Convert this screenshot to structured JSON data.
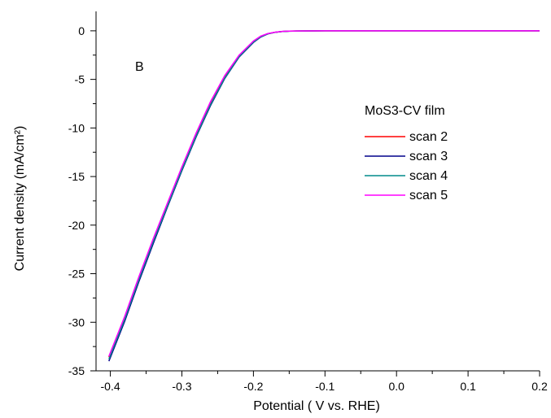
{
  "chart_data": {
    "type": "line",
    "panel_label": "B",
    "xlabel": "Potential ( V vs. RHE)",
    "ylabel": "Current density (mA/cm²)",
    "xlim": [
      -0.42,
      0.2
    ],
    "ylim": [
      -35,
      2
    ],
    "x_ticks": [
      -0.4,
      -0.3,
      -0.2,
      -0.1,
      0.0,
      0.1,
      0.2
    ],
    "x_tick_labels": [
      "-0.4",
      "-0.3",
      "-0.2",
      "-0.1",
      "0.0",
      "0.1",
      "0.2"
    ],
    "y_ticks": [
      0,
      -5,
      -10,
      -15,
      -20,
      -25,
      -30,
      -35
    ],
    "y_tick_labels": [
      "0",
      "-5",
      "-10",
      "-15",
      "-20",
      "-25",
      "-30",
      "-35"
    ],
    "legend_title": "MoS3-CV film",
    "legend_position": "right",
    "grid": false,
    "series": [
      {
        "name": "scan 2",
        "color": "#ff0000",
        "x": [
          -0.402,
          -0.38,
          -0.36,
          -0.34,
          -0.32,
          -0.3,
          -0.28,
          -0.26,
          -0.24,
          -0.22,
          -0.2,
          -0.19,
          -0.18,
          -0.17,
          -0.16,
          -0.15,
          -0.14,
          -0.12,
          -0.1,
          -0.05,
          0.0,
          0.05,
          0.1,
          0.15,
          0.2
        ],
        "y": [
          -33.6,
          -29.5,
          -25.5,
          -21.6,
          -17.9,
          -14.2,
          -10.7,
          -7.5,
          -4.8,
          -2.6,
          -1.1,
          -0.6,
          -0.3,
          -0.15,
          -0.07,
          -0.03,
          -0.02,
          -0.01,
          0,
          0,
          0,
          0,
          0,
          0,
          0
        ]
      },
      {
        "name": "scan 3",
        "color": "#00008b",
        "x": [
          -0.402,
          -0.38,
          -0.36,
          -0.34,
          -0.32,
          -0.3,
          -0.28,
          -0.26,
          -0.24,
          -0.22,
          -0.2,
          -0.19,
          -0.18,
          -0.17,
          -0.16,
          -0.15,
          -0.14,
          -0.12,
          -0.1,
          -0.05,
          0.0,
          0.05,
          0.1,
          0.15,
          0.2
        ],
        "y": [
          -34.0,
          -29.9,
          -25.8,
          -21.9,
          -18.1,
          -14.4,
          -10.9,
          -7.7,
          -4.9,
          -2.7,
          -1.2,
          -0.65,
          -0.32,
          -0.16,
          -0.08,
          -0.04,
          -0.02,
          -0.01,
          0,
          0,
          0,
          0,
          0,
          0,
          0
        ]
      },
      {
        "name": "scan 4",
        "color": "#008b8b",
        "x": [
          -0.402,
          -0.38,
          -0.36,
          -0.34,
          -0.32,
          -0.3,
          -0.28,
          -0.26,
          -0.24,
          -0.22,
          -0.2,
          -0.19,
          -0.18,
          -0.17,
          -0.16,
          -0.15,
          -0.14,
          -0.12,
          -0.1,
          -0.05,
          0.0,
          0.05,
          0.1,
          0.15,
          0.2
        ],
        "y": [
          -33.8,
          -29.7,
          -25.6,
          -21.7,
          -18.0,
          -14.3,
          -10.8,
          -7.6,
          -4.85,
          -2.65,
          -1.15,
          -0.62,
          -0.31,
          -0.15,
          -0.07,
          -0.03,
          -0.02,
          -0.01,
          0,
          0,
          0,
          0,
          0,
          0,
          0
        ]
      },
      {
        "name": "scan 5",
        "color": "#ff00ff",
        "x": [
          -0.402,
          -0.38,
          -0.36,
          -0.34,
          -0.32,
          -0.3,
          -0.28,
          -0.26,
          -0.24,
          -0.22,
          -0.2,
          -0.19,
          -0.18,
          -0.17,
          -0.16,
          -0.15,
          -0.14,
          -0.12,
          -0.1,
          -0.05,
          0.0,
          0.05,
          0.1,
          0.15,
          0.2
        ],
        "y": [
          -33.5,
          -29.4,
          -25.3,
          -21.4,
          -17.7,
          -14.0,
          -10.5,
          -7.3,
          -4.6,
          -2.5,
          -1.05,
          -0.55,
          -0.28,
          -0.14,
          -0.06,
          -0.03,
          -0.02,
          -0.01,
          0,
          0,
          0,
          0,
          0,
          0,
          0
        ]
      }
    ]
  }
}
